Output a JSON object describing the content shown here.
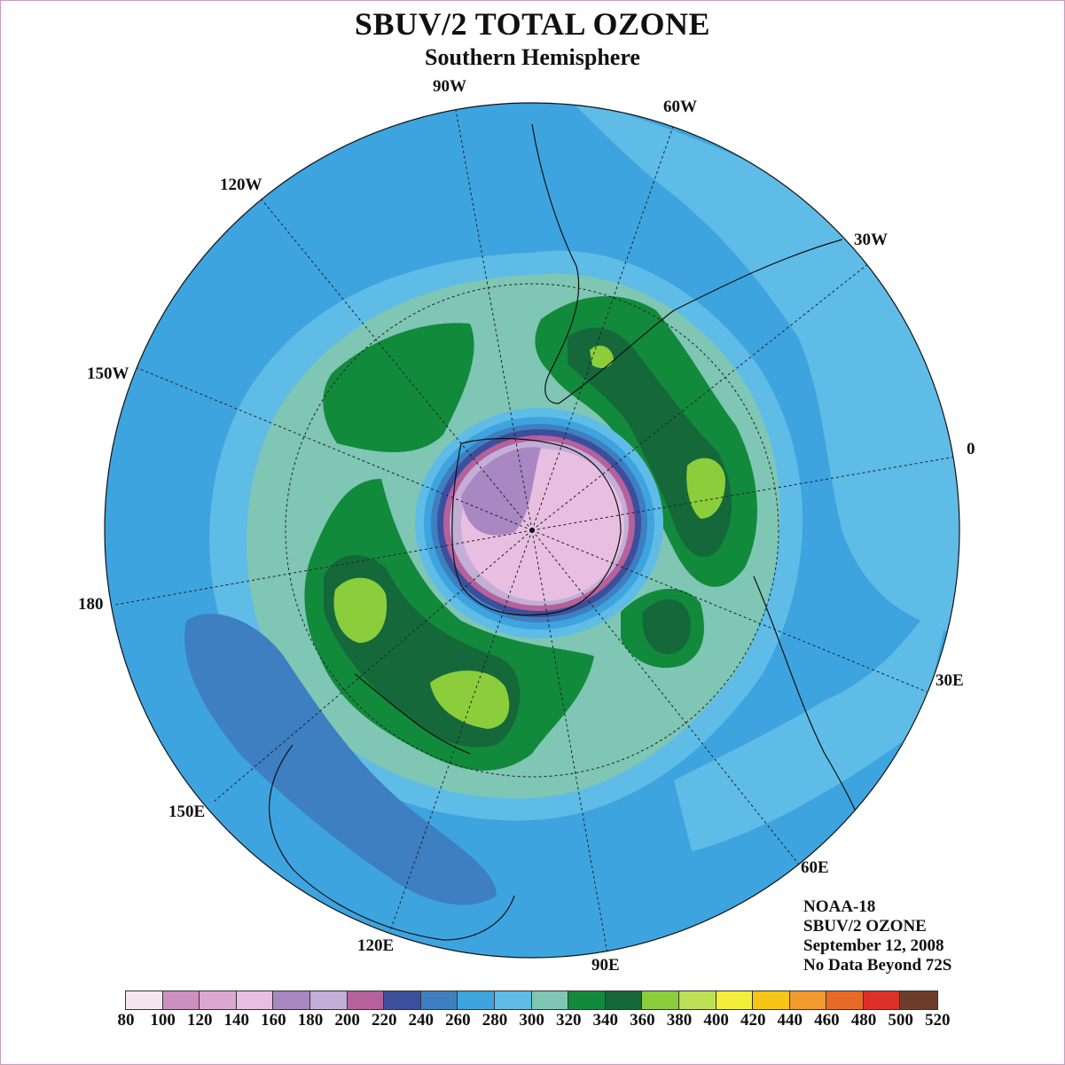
{
  "title": "SBUV/2 TOTAL OZONE",
  "subtitle": "Southern Hemisphere",
  "longitude_labels": [
    "90W",
    "60W",
    "30W",
    "0",
    "30E",
    "60E",
    "90E",
    "120E",
    "150E",
    "180",
    "150W",
    "120W"
  ],
  "info": [
    "NOAA-18",
    "SBUV/2 OZONE",
    "September 12, 2008",
    "No Data Beyond 72S"
  ],
  "colorbar": {
    "ticks": [
      "80",
      "100",
      "120",
      "140",
      "160",
      "180",
      "200",
      "220",
      "240",
      "260",
      "280",
      "300",
      "320",
      "340",
      "360",
      "380",
      "400",
      "420",
      "440",
      "460",
      "480",
      "500",
      "520"
    ],
    "colors": [
      "#f5e6f0",
      "#cc8fbf",
      "#dca7d2",
      "#e8bfe0",
      "#a887c3",
      "#c3aed7",
      "#b5619c",
      "#3c4f9c",
      "#3e7fc1",
      "#3ea4df",
      "#5fbce6",
      "#7fc6b4",
      "#128a3c",
      "#15683a",
      "#8ccd3c",
      "#bde055",
      "#f2ee3a",
      "#f6c516",
      "#f19a2e",
      "#e86a27",
      "#dd3027",
      "#6c3e2a"
    ]
  },
  "colors": {
    "background_ozone": "#3ea4df",
    "land_outline": "#111111"
  }
}
